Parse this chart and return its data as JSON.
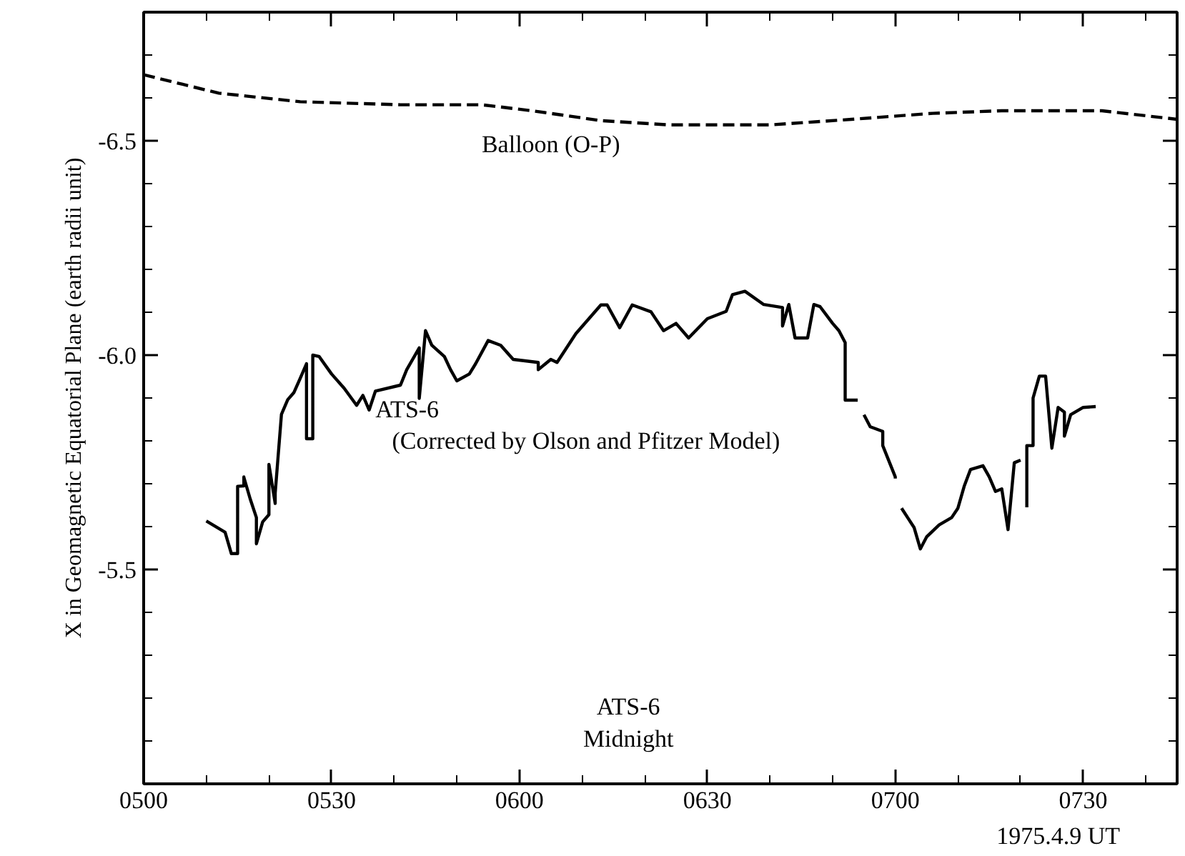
{
  "chart_data": {
    "type": "line",
    "xlabel": "1975.4.9 UT",
    "ylabel": "X in Geomagnetic Equatorial Plane (earth radii unit)",
    "xlim": [
      "1975-04-09T05:00",
      "1975-04-09T07:45"
    ],
    "ylim": [
      -5.0,
      -6.8
    ],
    "xticks": [
      {
        "value": "1975-04-09T05:00",
        "label": "0500"
      },
      {
        "value": "1975-04-09T05:10",
        "label": null
      },
      {
        "value": "1975-04-09T05:20",
        "label": null
      },
      {
        "value": "1975-04-09T05:30",
        "label": "0530"
      },
      {
        "value": "1975-04-09T05:40",
        "label": null
      },
      {
        "value": "1975-04-09T05:50",
        "label": null
      },
      {
        "value": "1975-04-09T06:00",
        "label": "0600"
      },
      {
        "value": "1975-04-09T06:10",
        "label": null
      },
      {
        "value": "1975-04-09T06:20",
        "label": null
      },
      {
        "value": "1975-04-09T06:30",
        "label": "0630"
      },
      {
        "value": "1975-04-09T06:40",
        "label": null
      },
      {
        "value": "1975-04-09T06:50",
        "label": null
      },
      {
        "value": "1975-04-09T07:00",
        "label": "0700"
      },
      {
        "value": "1975-04-09T07:10",
        "label": null
      },
      {
        "value": "1975-04-09T07:20",
        "label": null
      },
      {
        "value": "1975-04-09T07:30",
        "label": "0730"
      },
      {
        "value": "1975-04-09T07:40",
        "label": null
      }
    ],
    "yticks": [
      {
        "value": -6.7,
        "label": null
      },
      {
        "value": -6.6,
        "label": null
      },
      {
        "value": -6.5,
        "label": "-6.5"
      },
      {
        "value": -6.4,
        "label": null
      },
      {
        "value": -6.3,
        "label": null
      },
      {
        "value": -6.2,
        "label": null
      },
      {
        "value": -6.1,
        "label": null
      },
      {
        "value": -6.0,
        "label": "-6.0"
      },
      {
        "value": -5.9,
        "label": null
      },
      {
        "value": -5.8,
        "label": null
      },
      {
        "value": -5.7,
        "label": null
      },
      {
        "value": -5.6,
        "label": null
      },
      {
        "value": -5.5,
        "label": "-5.5"
      },
      {
        "value": -5.4,
        "label": null
      },
      {
        "value": -5.3,
        "label": null
      },
      {
        "value": -5.2,
        "label": null
      },
      {
        "value": -5.1,
        "label": null
      }
    ],
    "series": [
      {
        "color": "#000000",
        "line_style": "dashed",
        "x": [
          "1975-04-09T05:00",
          "1975-04-09T05:12",
          "1975-04-09T05:25",
          "1975-04-09T05:41",
          "1975-04-09T05:54",
          "1975-04-09T06:02",
          "1975-04-09T06:13",
          "1975-04-09T06:24",
          "1975-04-09T06:40",
          "1975-04-09T06:53",
          "1975-04-09T07:06",
          "1975-04-09T07:17",
          "1975-04-09T07:33",
          "1975-04-09T07:45"
        ],
        "values": [
          -6.654,
          -6.611,
          -6.591,
          -6.584,
          -6.584,
          -6.57,
          -6.547,
          -6.537,
          -6.537,
          -6.55,
          -6.564,
          -6.57,
          -6.57,
          -6.55
        ]
      },
      {
        "color": "#000000",
        "line_style": "solid",
        "x": [
          "1975-04-09T05:10",
          "1975-04-09T05:13",
          "1975-04-09T05:14",
          "1975-04-09T05:15",
          "1975-04-09T05:15",
          "1975-04-09T05:16",
          "1975-04-09T05:16",
          "1975-04-09T05:16",
          "1975-04-09T05:17",
          "1975-04-09T05:18",
          "1975-04-09T05:18",
          "1975-04-09T05:19",
          "1975-04-09T05:20",
          "1975-04-09T05:20",
          "1975-04-09T05:21",
          "1975-04-09T05:21",
          "1975-04-09T05:22",
          "1975-04-09T05:23",
          "1975-04-09T05:24",
          "1975-04-09T05:25",
          "1975-04-09T05:26",
          "1975-04-09T05:26",
          "1975-04-09T05:27",
          "1975-04-09T05:27",
          "1975-04-09T05:28",
          "1975-04-09T05:30",
          "1975-04-09T05:32",
          "1975-04-09T05:34",
          "1975-04-09T05:35",
          "1975-04-09T05:36",
          "1975-04-09T05:37",
          "1975-04-09T05:41",
          "1975-04-09T05:42",
          "1975-04-09T05:44",
          "1975-04-09T05:44",
          "1975-04-09T05:45",
          "1975-04-09T05:46",
          "1975-04-09T05:48",
          "1975-04-09T05:49",
          "1975-04-09T05:50",
          "1975-04-09T05:52",
          "1975-04-09T05:53",
          "1975-04-09T05:55",
          "1975-04-09T05:57",
          "1975-04-09T05:59",
          "1975-04-09T06:03",
          "1975-04-09T06:03",
          "1975-04-09T06:05",
          "1975-04-09T06:06",
          "1975-04-09T06:09",
          "1975-04-09T06:13",
          "1975-04-09T06:14",
          "1975-04-09T06:16",
          "1975-04-09T06:18",
          "1975-04-09T06:21",
          "1975-04-09T06:23",
          "1975-04-09T06:25",
          "1975-04-09T06:27",
          "1975-04-09T06:30",
          "1975-04-09T06:33",
          "1975-04-09T06:34",
          "1975-04-09T06:36",
          "1975-04-09T06:39",
          "1975-04-09T06:42",
          "1975-04-09T06:42",
          "1975-04-09T06:43",
          "1975-04-09T06:43",
          "1975-04-09T06:44",
          "1975-04-09T06:46",
          "1975-04-09T06:47",
          "1975-04-09T06:48",
          "1975-04-09T06:50",
          "1975-04-09T06:51",
          "1975-04-09T06:52",
          "1975-04-09T06:52",
          "1975-04-09T06:54"
        ],
        "values": [
          -5.613,
          -5.587,
          -5.537,
          -5.537,
          -5.694,
          -5.695,
          -5.716,
          -5.715,
          -5.665,
          -5.621,
          -5.56,
          -5.611,
          -5.628,
          -5.745,
          -5.654,
          -5.678,
          -5.862,
          -5.896,
          -5.913,
          -5.946,
          -5.98,
          -5.805,
          -5.805,
          -6.0,
          -5.997,
          -5.956,
          -5.923,
          -5.883,
          -5.906,
          -5.872,
          -5.916,
          -5.93,
          -5.966,
          -6.017,
          -5.899,
          -6.057,
          -6.023,
          -5.997,
          -5.966,
          -5.94,
          -5.956,
          -5.98,
          -6.034,
          -6.023,
          -5.99,
          -5.983,
          -5.966,
          -5.99,
          -5.983,
          -6.05,
          -6.117,
          -6.117,
          -6.064,
          -6.117,
          -6.101,
          -6.057,
          -6.074,
          -6.04,
          -6.085,
          -6.102,
          -6.141,
          -6.149,
          -6.118,
          -6.111,
          -6.068,
          -6.118,
          -6.118,
          -6.04,
          -6.04,
          -6.118,
          -6.113,
          -6.074,
          -6.057,
          -6.029,
          -5.895,
          -5.895
        ]
      },
      {
        "color": "#000000",
        "line_style": "solid",
        "x": [
          "1975-04-09T06:55",
          "1975-04-09T06:56",
          "1975-04-09T06:58",
          "1975-04-09T06:58",
          "1975-04-09T07:00",
          "1975-04-09T07:00"
        ],
        "values": [
          -5.861,
          -5.833,
          -5.822,
          -5.789,
          -5.716,
          -5.712
        ]
      },
      {
        "color": "#000000",
        "line_style": "solid",
        "x": [
          "1975-04-09T07:01",
          "1975-04-09T07:03",
          "1975-04-09T07:04",
          "1975-04-09T07:05",
          "1975-04-09T07:07",
          "1975-04-09T07:09",
          "1975-04-09T07:10",
          "1975-04-09T07:11",
          "1975-04-09T07:12",
          "1975-04-09T07:14",
          "1975-04-09T07:15",
          "1975-04-09T07:16",
          "1975-04-09T07:17",
          "1975-04-09T07:18",
          "1975-04-09T07:18",
          "1975-04-09T07:19",
          "1975-04-09T07:20"
        ],
        "values": [
          -5.643,
          -5.598,
          -5.548,
          -5.576,
          -5.604,
          -5.621,
          -5.643,
          -5.694,
          -5.733,
          -5.742,
          -5.716,
          -5.682,
          -5.688,
          -5.593,
          -5.593,
          -5.749,
          -5.755
        ]
      },
      {
        "color": "#000000",
        "line_style": "solid",
        "x": [
          "1975-04-09T07:21",
          "1975-04-09T07:21",
          "1975-04-09T07:22",
          "1975-04-09T07:22",
          "1975-04-09T07:23",
          "1975-04-09T07:24",
          "1975-04-09T07:25",
          "1975-04-09T07:25",
          "1975-04-09T07:26",
          "1975-04-09T07:27",
          "1975-04-09T07:27",
          "1975-04-09T07:28",
          "1975-04-09T07:30",
          "1975-04-09T07:32"
        ],
        "values": [
          -5.645,
          -5.789,
          -5.789,
          -5.9,
          -5.951,
          -5.951,
          -5.783,
          -5.783,
          -5.878,
          -5.867,
          -5.811,
          -5.861,
          -5.878,
          -5.88
        ]
      }
    ],
    "annotations": [
      "Balloon (O-P)",
      "ATS-6",
      "(Corrected by Olson and Pfitzer Model)",
      "ATS-6",
      "Midnight"
    ]
  }
}
